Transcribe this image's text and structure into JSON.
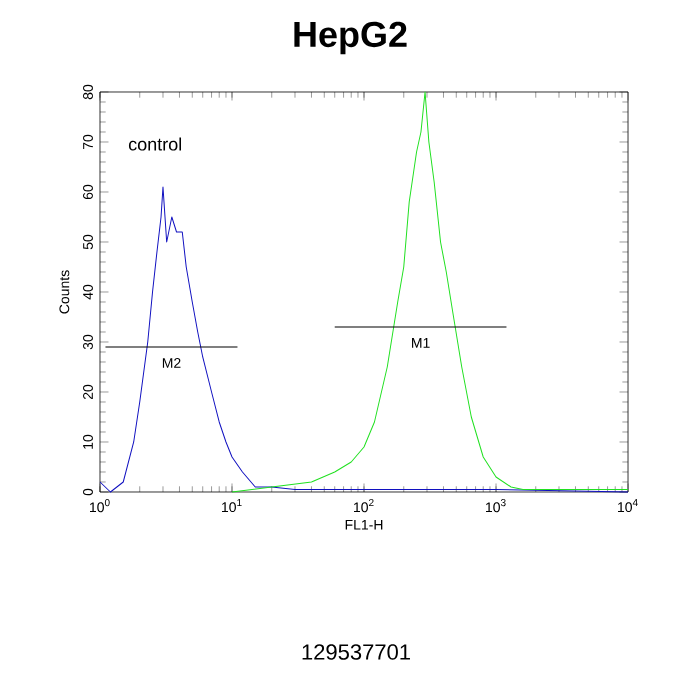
{
  "chart_data": {
    "type": "line",
    "title": "HepG2",
    "xlabel": "FL1-H",
    "ylabel": "Counts",
    "log": "x",
    "marker": "none",
    "grid": false,
    "xlim": [
      1,
      10000
    ],
    "ylim": [
      0,
      80
    ],
    "xticks": [
      {
        "value": 1,
        "label": "10$^{0}$"
      },
      {
        "value": 10,
        "label": "10$^{1}$"
      },
      {
        "value": 100,
        "label": "10$^{2}$"
      },
      {
        "value": 1000,
        "label": "10$^{3}$"
      },
      {
        "value": 10000,
        "label": "10$^{4}$"
      }
    ],
    "yticks": [
      0,
      10,
      20,
      30,
      40,
      50,
      60,
      70,
      80
    ],
    "annotations": [
      "control",
      "129537701"
    ],
    "series": [
      {
        "color": "#1010c0",
        "x": [
          1,
          1.2,
          1.5,
          1.8,
          2.0,
          2.3,
          2.5,
          2.7,
          2.9,
          3.0,
          3.2,
          3.5,
          3.8,
          4.2,
          4.5,
          5,
          5.5,
          6,
          7,
          8,
          9,
          10,
          12,
          15,
          20,
          30,
          100,
          1000,
          10000
        ],
        "values": [
          2,
          0,
          2,
          10,
          18,
          30,
          40,
          48,
          55,
          61,
          50,
          55,
          52,
          52,
          45,
          38,
          32,
          27,
          20,
          14,
          10,
          7,
          4,
          1,
          1,
          0.5,
          0.5,
          0.5,
          0
        ]
      },
      {
        "color": "#20e020",
        "x": [
          10,
          20,
          40,
          60,
          80,
          100,
          120,
          150,
          180,
          200,
          220,
          250,
          270,
          290,
          310,
          340,
          380,
          420,
          470,
          550,
          650,
          800,
          1000,
          1300,
          1600,
          10000
        ],
        "values": [
          0,
          1,
          2,
          4,
          6,
          9,
          14,
          25,
          38,
          45,
          58,
          68,
          72,
          80,
          70,
          62,
          50,
          44,
          36,
          25,
          15,
          7,
          3,
          1,
          0.5,
          0.5
        ]
      },
      {
        "name": "M1",
        "color": "#000000",
        "x": [
          60,
          1200
        ],
        "values": [
          33,
          33
        ]
      },
      {
        "name": "M2",
        "color": "#000000",
        "x": [
          1.1,
          11
        ],
        "values": [
          29,
          29
        ]
      }
    ]
  }
}
